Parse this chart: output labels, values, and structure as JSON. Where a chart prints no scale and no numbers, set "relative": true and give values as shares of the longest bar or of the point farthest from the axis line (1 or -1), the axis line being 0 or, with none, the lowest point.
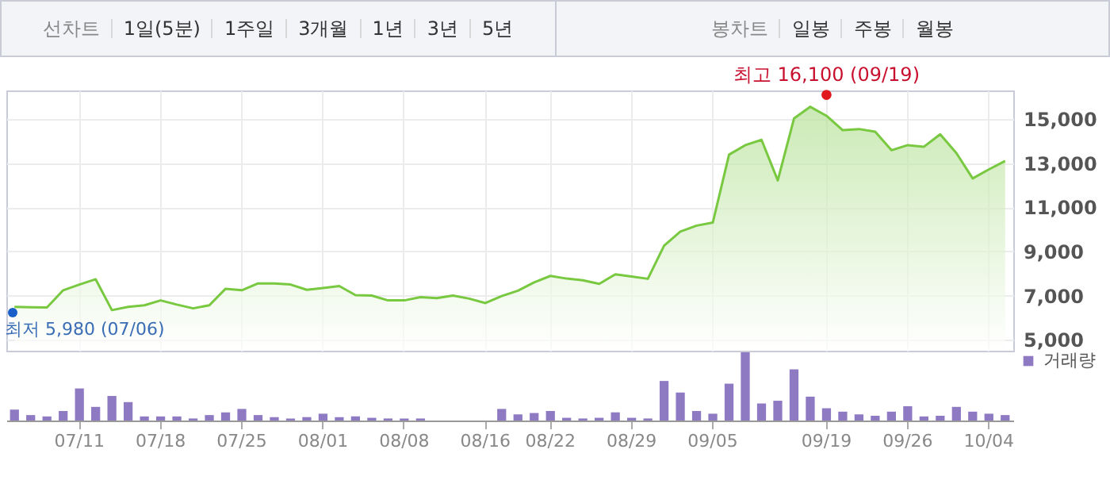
{
  "chart_data": [
    {
      "type": "area",
      "categories": [
        null,
        null,
        null,
        null,
        "07/11",
        null,
        null,
        null,
        null,
        "07/18",
        null,
        null,
        null,
        null,
        "07/25",
        null,
        null,
        null,
        null,
        "08/01",
        null,
        null,
        null,
        null,
        "08/08",
        null,
        null,
        null,
        null,
        "08/16",
        null,
        null,
        null,
        "08/22",
        null,
        null,
        null,
        null,
        "08/29",
        null,
        null,
        null,
        null,
        "09/05",
        null,
        null,
        null,
        null,
        null,
        null,
        "09/19",
        null,
        null,
        null,
        null,
        "09/26",
        null,
        null,
        null,
        null,
        "10/04",
        null
      ],
      "series": [
        {
          "color": "#78c840",
          "values": [
            6490,
            6470,
            6460,
            7240,
            7500,
            7740,
            6340,
            6490,
            6560,
            6780,
            6590,
            6420,
            6560,
            7310,
            7240,
            7550,
            7550,
            7500,
            7260,
            7340,
            7430,
            7020,
            7000,
            6780,
            6780,
            6930,
            6880,
            7000,
            6860,
            6660,
            6980,
            7220,
            7600,
            7890,
            7770,
            7690,
            7530,
            7960,
            7860,
            7760,
            9260,
            9900,
            10170,
            10310,
            13390,
            13820,
            14060,
            12220,
            15030,
            15560,
            15150,
            14500,
            14550,
            14430,
            13590,
            13820,
            13750,
            14310,
            13460,
            12310,
            12720,
            13100
          ]
        }
      ],
      "ylim": [
        4500,
        16300
      ],
      "yticks": [
        {
          "value": 5000,
          "label": "5,000"
        },
        {
          "value": 7000,
          "label": "7,000"
        },
        {
          "value": 9000,
          "label": "9,000"
        },
        {
          "value": 11000,
          "label": "11,000"
        },
        {
          "value": 13000,
          "label": "13,000"
        },
        {
          "value": 15000,
          "label": "15,000"
        }
      ],
      "grid": true,
      "tick_labels": "y",
      "annotations": [
        "선차트",
        "1일(5분)",
        "1주일",
        "3개월",
        "1년",
        "3년",
        "5년",
        "봉차트",
        "일봉",
        "주봉",
        "월봉",
        {
          "text": "최고 16,100 (09/19)",
          "x": "09/19",
          "y": 16100
        },
        "최저 5,980 (07/06)"
      ]
    },
    {
      "type": "bar",
      "relative": true,
      "categories": [
        null,
        null,
        null,
        null,
        "07/11",
        null,
        null,
        null,
        null,
        "07/18",
        null,
        null,
        null,
        null,
        "07/25",
        null,
        null,
        null,
        null,
        "08/01",
        null,
        null,
        null,
        null,
        "08/08",
        null,
        null,
        null,
        null,
        "08/16",
        null,
        null,
        null,
        "08/22",
        null,
        null,
        null,
        null,
        "08/29",
        null,
        null,
        null,
        null,
        "09/05",
        null,
        null,
        null,
        null,
        null,
        null,
        "09/19",
        null,
        null,
        null,
        null,
        "09/26",
        null,
        null,
        null,
        null,
        "10/04",
        null
      ],
      "series": [
        {
          "name": "거래량",
          "color": "#8e79c3",
          "values": [
            0.16,
            0.08,
            0.06,
            0.14,
            0.47,
            0.2,
            0.36,
            0.27,
            0.06,
            0.06,
            0.06,
            0.03,
            0.08,
            0.12,
            0.17,
            0.08,
            0.05,
            0.03,
            0.05,
            0.1,
            0.05,
            0.06,
            0.04,
            0.03,
            0.03,
            0.03,
            null,
            null,
            null,
            null,
            0.17,
            0.09,
            0.11,
            0.14,
            0.04,
            0.03,
            0.04,
            0.12,
            0.04,
            0.03,
            0.58,
            0.41,
            0.14,
            0.1,
            0.54,
            1,
            0.25,
            0.29,
            0.75,
            0.35,
            0.18,
            0.13,
            0.09,
            0.07,
            0.13,
            0.21,
            0.06,
            0.07,
            0.2,
            0.13,
            0.1,
            0.08
          ]
        }
      ],
      "legend": "right",
      "tick_labels": "x"
    }
  ]
}
